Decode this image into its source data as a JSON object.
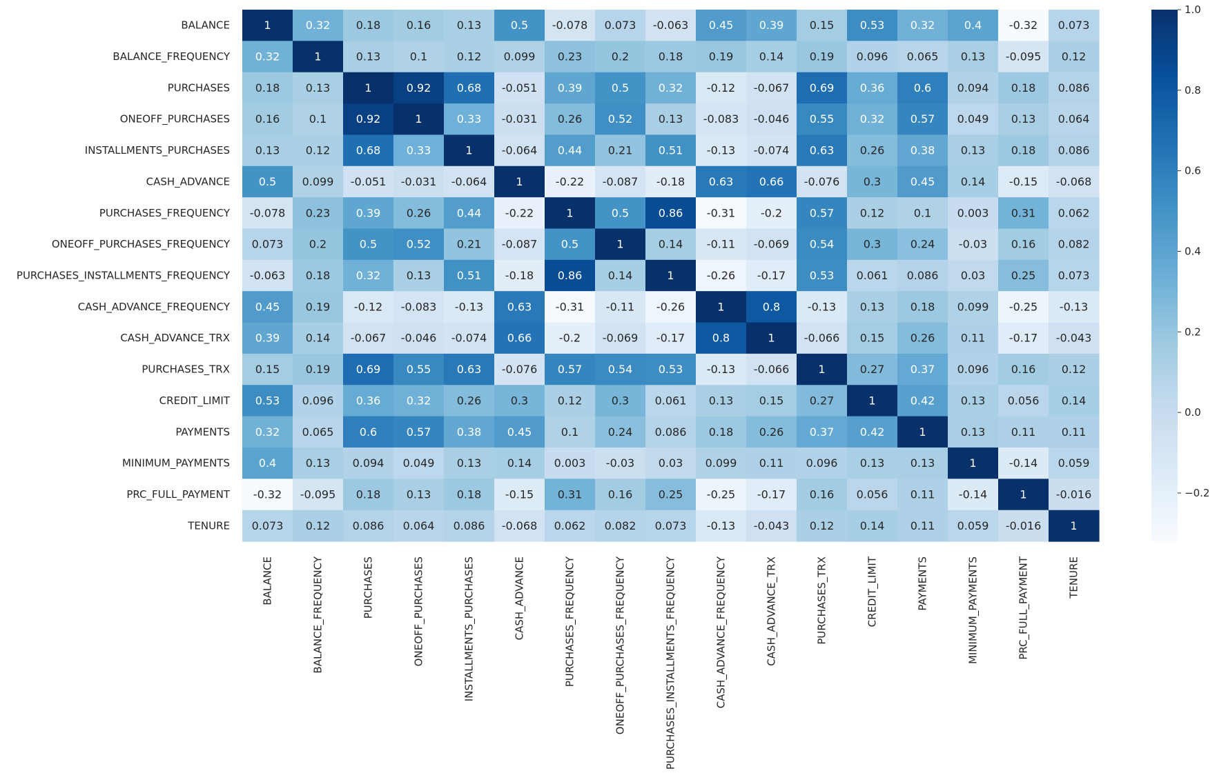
{
  "chart_data": {
    "type": "heatmap",
    "title": "",
    "xlabel": "",
    "ylabel": "",
    "colormap": "Blues",
    "annotated": true,
    "grid": false,
    "colorbar": {
      "position": "right",
      "range": [
        -0.32,
        1.0
      ],
      "ticks": [
        1.0,
        0.8,
        0.6,
        0.4,
        0.2,
        0.0,
        -0.2
      ],
      "tick_labels": [
        "1.0",
        "0.8",
        "0.6",
        "0.4",
        "0.2",
        "0.0",
        "−0.2"
      ]
    },
    "row_labels": [
      "BALANCE",
      "BALANCE_FREQUENCY",
      "PURCHASES",
      "ONEOFF_PURCHASES",
      "INSTALLMENTS_PURCHASES",
      "CASH_ADVANCE",
      "PURCHASES_FREQUENCY",
      "ONEOFF_PURCHASES_FREQUENCY",
      "PURCHASES_INSTALLMENTS_FREQUENCY",
      "CASH_ADVANCE_FREQUENCY",
      "CASH_ADVANCE_TRX",
      "PURCHASES_TRX",
      "CREDIT_LIMIT",
      "PAYMENTS",
      "MINIMUM_PAYMENTS",
      "PRC_FULL_PAYMENT",
      "TENURE"
    ],
    "col_labels": [
      "BALANCE",
      "BALANCE_FREQUENCY",
      "PURCHASES",
      "ONEOFF_PURCHASES",
      "INSTALLMENTS_PURCHASES",
      "CASH_ADVANCE",
      "PURCHASES_FREQUENCY",
      "ONEOFF_PURCHASES_FREQUENCY",
      "PURCHASES_INSTALLMENTS_FREQUENCY",
      "CASH_ADVANCE_FREQUENCY",
      "CASH_ADVANCE_TRX",
      "PURCHASES_TRX",
      "CREDIT_LIMIT",
      "PAYMENTS",
      "MINIMUM_PAYMENTS",
      "PRC_FULL_PAYMENT",
      "TENURE"
    ],
    "values": [
      [
        1,
        0.32,
        0.18,
        0.16,
        0.13,
        0.5,
        -0.078,
        0.073,
        -0.063,
        0.45,
        0.39,
        0.15,
        0.53,
        0.32,
        0.4,
        -0.32,
        0.073
      ],
      [
        0.32,
        1,
        0.13,
        0.1,
        0.12,
        0.099,
        0.23,
        0.2,
        0.18,
        0.19,
        0.14,
        0.19,
        0.096,
        0.065,
        0.13,
        -0.095,
        0.12
      ],
      [
        0.18,
        0.13,
        1,
        0.92,
        0.68,
        -0.051,
        0.39,
        0.5,
        0.32,
        -0.12,
        -0.067,
        0.69,
        0.36,
        0.6,
        0.094,
        0.18,
        0.086
      ],
      [
        0.16,
        0.1,
        0.92,
        1,
        0.33,
        -0.031,
        0.26,
        0.52,
        0.13,
        -0.083,
        -0.046,
        0.55,
        0.32,
        0.57,
        0.049,
        0.13,
        0.064
      ],
      [
        0.13,
        0.12,
        0.68,
        0.33,
        1,
        -0.064,
        0.44,
        0.21,
        0.51,
        -0.13,
        -0.074,
        0.63,
        0.26,
        0.38,
        0.13,
        0.18,
        0.086
      ],
      [
        0.5,
        0.099,
        -0.051,
        -0.031,
        -0.064,
        1,
        -0.22,
        -0.087,
        -0.18,
        0.63,
        0.66,
        -0.076,
        0.3,
        0.45,
        0.14,
        -0.15,
        -0.068
      ],
      [
        -0.078,
        0.23,
        0.39,
        0.26,
        0.44,
        -0.22,
        1,
        0.5,
        0.86,
        -0.31,
        -0.2,
        0.57,
        0.12,
        0.1,
        0.003,
        0.31,
        0.062
      ],
      [
        0.073,
        0.2,
        0.5,
        0.52,
        0.21,
        -0.087,
        0.5,
        1,
        0.14,
        -0.11,
        -0.069,
        0.54,
        0.3,
        0.24,
        -0.03,
        0.16,
        0.082
      ],
      [
        -0.063,
        0.18,
        0.32,
        0.13,
        0.51,
        -0.18,
        0.86,
        0.14,
        1,
        -0.26,
        -0.17,
        0.53,
        0.061,
        0.086,
        0.03,
        0.25,
        0.073
      ],
      [
        0.45,
        0.19,
        -0.12,
        -0.083,
        -0.13,
        0.63,
        -0.31,
        -0.11,
        -0.26,
        1,
        0.8,
        -0.13,
        0.13,
        0.18,
        0.099,
        -0.25,
        -0.13
      ],
      [
        0.39,
        0.14,
        -0.067,
        -0.046,
        -0.074,
        0.66,
        -0.2,
        -0.069,
        -0.17,
        0.8,
        1,
        -0.066,
        0.15,
        0.26,
        0.11,
        -0.17,
        -0.043
      ],
      [
        0.15,
        0.19,
        0.69,
        0.55,
        0.63,
        -0.076,
        0.57,
        0.54,
        0.53,
        -0.13,
        -0.066,
        1,
        0.27,
        0.37,
        0.096,
        0.16,
        0.12
      ],
      [
        0.53,
        0.096,
        0.36,
        0.32,
        0.26,
        0.3,
        0.12,
        0.3,
        0.061,
        0.13,
        0.15,
        0.27,
        1,
        0.42,
        0.13,
        0.056,
        0.14
      ],
      [
        0.32,
        0.065,
        0.6,
        0.57,
        0.38,
        0.45,
        0.1,
        0.24,
        0.086,
        0.18,
        0.26,
        0.37,
        0.42,
        1,
        0.13,
        0.11,
        0.11
      ],
      [
        0.4,
        0.13,
        0.094,
        0.049,
        0.13,
        0.14,
        0.003,
        -0.03,
        0.03,
        0.099,
        0.11,
        0.096,
        0.13,
        0.13,
        1,
        -0.14,
        0.059
      ],
      [
        -0.32,
        -0.095,
        0.18,
        0.13,
        0.18,
        -0.15,
        0.31,
        0.16,
        0.25,
        -0.25,
        -0.17,
        0.16,
        0.056,
        0.11,
        -0.14,
        1,
        -0.016
      ],
      [
        0.073,
        0.12,
        0.086,
        0.064,
        0.086,
        -0.068,
        0.062,
        0.082,
        0.073,
        -0.13,
        -0.043,
        0.12,
        0.14,
        0.11,
        0.059,
        -0.016,
        1
      ]
    ]
  }
}
